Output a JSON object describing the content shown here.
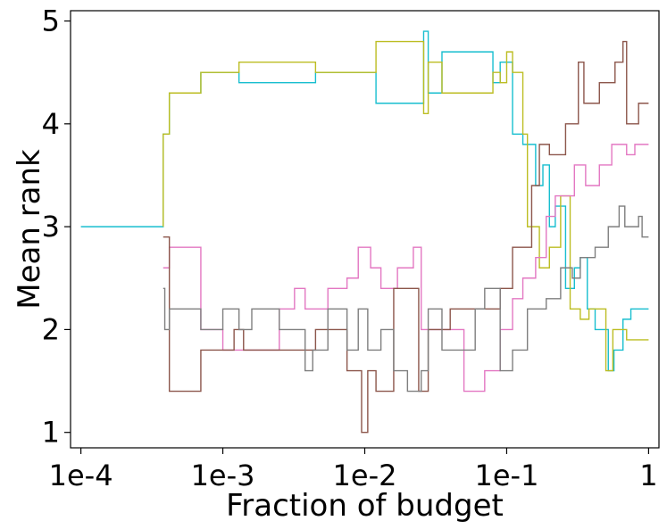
{
  "chart_data": {
    "type": "line",
    "xlabel": "Fraction of budget",
    "ylabel": "Mean rank",
    "xscale": "log",
    "xlim": [
      0.0001,
      1
    ],
    "ylim": [
      0.85,
      5.1
    ],
    "x_ticks": [
      {
        "value": 0.0001,
        "label": "1e-4"
      },
      {
        "value": 0.001,
        "label": "1e-3"
      },
      {
        "value": 0.01,
        "label": "1e-2"
      },
      {
        "value": 0.1,
        "label": "1e-1"
      },
      {
        "value": 1,
        "label": "1"
      }
    ],
    "y_ticks": [
      {
        "value": 1,
        "label": "1"
      },
      {
        "value": 2,
        "label": "2"
      },
      {
        "value": 3,
        "label": "3"
      },
      {
        "value": 4,
        "label": "4"
      },
      {
        "value": 5,
        "label": "5"
      }
    ],
    "grid": false,
    "legend": "none",
    "series": [
      {
        "color": "#17becf",
        "points": [
          [
            0.0001,
            3.0
          ],
          [
            0.00038,
            3.0
          ],
          [
            0.00038,
            3.9
          ],
          [
            0.00042,
            3.9
          ],
          [
            0.00042,
            4.3
          ],
          [
            0.0007,
            4.3
          ],
          [
            0.0007,
            4.5
          ],
          [
            0.0013,
            4.5
          ],
          [
            0.0013,
            4.4
          ],
          [
            0.0045,
            4.4
          ],
          [
            0.0045,
            4.5
          ],
          [
            0.012,
            4.5
          ],
          [
            0.012,
            4.2
          ],
          [
            0.026,
            4.2
          ],
          [
            0.026,
            4.9
          ],
          [
            0.028,
            4.9
          ],
          [
            0.028,
            4.3
          ],
          [
            0.035,
            4.3
          ],
          [
            0.035,
            4.7
          ],
          [
            0.08,
            4.7
          ],
          [
            0.08,
            4.4
          ],
          [
            0.09,
            4.4
          ],
          [
            0.09,
            4.6
          ],
          [
            0.11,
            4.6
          ],
          [
            0.11,
            3.9
          ],
          [
            0.13,
            3.9
          ],
          [
            0.13,
            3.8
          ],
          [
            0.16,
            3.8
          ],
          [
            0.16,
            3.4
          ],
          [
            0.18,
            3.4
          ],
          [
            0.18,
            3.6
          ],
          [
            0.2,
            3.6
          ],
          [
            0.2,
            3.0
          ],
          [
            0.22,
            3.0
          ],
          [
            0.22,
            3.2
          ],
          [
            0.26,
            3.2
          ],
          [
            0.26,
            2.4
          ],
          [
            0.3,
            2.4
          ],
          [
            0.3,
            2.6
          ],
          [
            0.33,
            2.6
          ],
          [
            0.33,
            2.7
          ],
          [
            0.37,
            2.7
          ],
          [
            0.37,
            2.2
          ],
          [
            0.42,
            2.2
          ],
          [
            0.42,
            2.0
          ],
          [
            0.52,
            2.0
          ],
          [
            0.52,
            1.6
          ],
          [
            0.57,
            1.6
          ],
          [
            0.57,
            1.8
          ],
          [
            0.66,
            1.8
          ],
          [
            0.66,
            2.1
          ],
          [
            0.75,
            2.1
          ],
          [
            0.75,
            2.2
          ],
          [
            1.0,
            2.2
          ]
        ]
      },
      {
        "color": "#bcbd22",
        "points": [
          [
            0.00038,
            3.0
          ],
          [
            0.00038,
            3.9
          ],
          [
            0.00042,
            3.9
          ],
          [
            0.00042,
            4.3
          ],
          [
            0.0007,
            4.3
          ],
          [
            0.0007,
            4.5
          ],
          [
            0.0013,
            4.5
          ],
          [
            0.0013,
            4.6
          ],
          [
            0.0045,
            4.6
          ],
          [
            0.0045,
            4.5
          ],
          [
            0.012,
            4.5
          ],
          [
            0.012,
            4.8
          ],
          [
            0.026,
            4.8
          ],
          [
            0.026,
            4.1
          ],
          [
            0.028,
            4.1
          ],
          [
            0.028,
            4.6
          ],
          [
            0.035,
            4.6
          ],
          [
            0.035,
            4.3
          ],
          [
            0.08,
            4.3
          ],
          [
            0.08,
            4.5
          ],
          [
            0.09,
            4.5
          ],
          [
            0.09,
            4.4
          ],
          [
            0.1,
            4.4
          ],
          [
            0.1,
            4.7
          ],
          [
            0.11,
            4.7
          ],
          [
            0.11,
            4.5
          ],
          [
            0.13,
            4.5
          ],
          [
            0.13,
            3.9
          ],
          [
            0.14,
            3.9
          ],
          [
            0.14,
            3.0
          ],
          [
            0.17,
            3.0
          ],
          [
            0.17,
            2.6
          ],
          [
            0.2,
            2.6
          ],
          [
            0.2,
            2.8
          ],
          [
            0.24,
            2.8
          ],
          [
            0.24,
            3.3
          ],
          [
            0.28,
            3.3
          ],
          [
            0.28,
            2.2
          ],
          [
            0.33,
            2.2
          ],
          [
            0.33,
            2.1
          ],
          [
            0.38,
            2.1
          ],
          [
            0.38,
            2.2
          ],
          [
            0.5,
            2.2
          ],
          [
            0.5,
            1.6
          ],
          [
            0.56,
            1.6
          ],
          [
            0.56,
            2.0
          ],
          [
            0.7,
            2.0
          ],
          [
            0.7,
            1.9
          ],
          [
            1.0,
            1.9
          ]
        ]
      },
      {
        "color": "#e377c2",
        "points": [
          [
            0.00038,
            2.6
          ],
          [
            0.00042,
            2.6
          ],
          [
            0.00042,
            2.8
          ],
          [
            0.0007,
            2.8
          ],
          [
            0.0007,
            2.0
          ],
          [
            0.001,
            2.0
          ],
          [
            0.001,
            1.8
          ],
          [
            0.0025,
            1.8
          ],
          [
            0.0025,
            2.2
          ],
          [
            0.0032,
            2.2
          ],
          [
            0.0032,
            2.4
          ],
          [
            0.0038,
            2.4
          ],
          [
            0.0038,
            2.2
          ],
          [
            0.0055,
            2.2
          ],
          [
            0.0055,
            2.4
          ],
          [
            0.0075,
            2.4
          ],
          [
            0.0075,
            2.5
          ],
          [
            0.009,
            2.5
          ],
          [
            0.009,
            2.8
          ],
          [
            0.011,
            2.8
          ],
          [
            0.011,
            2.6
          ],
          [
            0.013,
            2.6
          ],
          [
            0.013,
            2.4
          ],
          [
            0.017,
            2.4
          ],
          [
            0.017,
            2.6
          ],
          [
            0.022,
            2.6
          ],
          [
            0.022,
            2.8
          ],
          [
            0.025,
            2.8
          ],
          [
            0.025,
            2.0
          ],
          [
            0.05,
            2.0
          ],
          [
            0.05,
            1.4
          ],
          [
            0.07,
            1.4
          ],
          [
            0.07,
            1.6
          ],
          [
            0.09,
            1.6
          ],
          [
            0.09,
            2.0
          ],
          [
            0.11,
            2.0
          ],
          [
            0.11,
            2.3
          ],
          [
            0.13,
            2.3
          ],
          [
            0.13,
            2.5
          ],
          [
            0.16,
            2.5
          ],
          [
            0.16,
            2.7
          ],
          [
            0.19,
            2.7
          ],
          [
            0.19,
            3.1
          ],
          [
            0.22,
            3.1
          ],
          [
            0.22,
            3.3
          ],
          [
            0.3,
            3.3
          ],
          [
            0.3,
            3.6
          ],
          [
            0.36,
            3.6
          ],
          [
            0.36,
            3.4
          ],
          [
            0.45,
            3.4
          ],
          [
            0.45,
            3.6
          ],
          [
            0.55,
            3.6
          ],
          [
            0.55,
            3.8
          ],
          [
            0.7,
            3.8
          ],
          [
            0.7,
            3.7
          ],
          [
            0.8,
            3.7
          ],
          [
            0.8,
            3.8
          ],
          [
            1.0,
            3.8
          ]
        ]
      },
      {
        "color": "#8c564b",
        "points": [
          [
            0.00038,
            2.9
          ],
          [
            0.00042,
            2.9
          ],
          [
            0.00042,
            1.4
          ],
          [
            0.0007,
            1.4
          ],
          [
            0.0007,
            1.8
          ],
          [
            0.0012,
            1.8
          ],
          [
            0.0012,
            2.0
          ],
          [
            0.0014,
            2.0
          ],
          [
            0.0014,
            1.8
          ],
          [
            0.0045,
            1.8
          ],
          [
            0.0045,
            2.0
          ],
          [
            0.0075,
            2.0
          ],
          [
            0.0075,
            1.6
          ],
          [
            0.0095,
            1.6
          ],
          [
            0.0095,
            1.0
          ],
          [
            0.0105,
            1.0
          ],
          [
            0.0105,
            1.6
          ],
          [
            0.012,
            1.6
          ],
          [
            0.012,
            1.4
          ],
          [
            0.016,
            1.4
          ],
          [
            0.016,
            2.4
          ],
          [
            0.024,
            2.4
          ],
          [
            0.024,
            1.4
          ],
          [
            0.028,
            1.4
          ],
          [
            0.028,
            2.0
          ],
          [
            0.04,
            2.0
          ],
          [
            0.04,
            2.2
          ],
          [
            0.09,
            2.2
          ],
          [
            0.09,
            2.4
          ],
          [
            0.11,
            2.4
          ],
          [
            0.11,
            2.8
          ],
          [
            0.15,
            2.8
          ],
          [
            0.15,
            3.4
          ],
          [
            0.17,
            3.4
          ],
          [
            0.17,
            3.8
          ],
          [
            0.2,
            3.8
          ],
          [
            0.2,
            3.7
          ],
          [
            0.26,
            3.7
          ],
          [
            0.26,
            4.0
          ],
          [
            0.32,
            4.0
          ],
          [
            0.32,
            4.6
          ],
          [
            0.35,
            4.6
          ],
          [
            0.35,
            4.2
          ],
          [
            0.45,
            4.2
          ],
          [
            0.45,
            4.4
          ],
          [
            0.58,
            4.4
          ],
          [
            0.58,
            4.6
          ],
          [
            0.66,
            4.6
          ],
          [
            0.66,
            4.8
          ],
          [
            0.7,
            4.8
          ],
          [
            0.7,
            4.0
          ],
          [
            0.85,
            4.0
          ],
          [
            0.85,
            4.2
          ],
          [
            1.0,
            4.2
          ]
        ]
      },
      {
        "color": "#7f7f7f",
        "points": [
          [
            0.00038,
            2.4
          ],
          [
            0.00039,
            2.4
          ],
          [
            0.00039,
            2.0
          ],
          [
            0.00042,
            2.0
          ],
          [
            0.00042,
            2.2
          ],
          [
            0.0007,
            2.2
          ],
          [
            0.0007,
            2.0
          ],
          [
            0.001,
            2.0
          ],
          [
            0.001,
            2.2
          ],
          [
            0.0013,
            2.2
          ],
          [
            0.0013,
            2.0
          ],
          [
            0.0016,
            2.0
          ],
          [
            0.0016,
            2.2
          ],
          [
            0.0025,
            2.2
          ],
          [
            0.0025,
            2.0
          ],
          [
            0.0038,
            2.0
          ],
          [
            0.0038,
            1.6
          ],
          [
            0.0043,
            1.6
          ],
          [
            0.0043,
            1.8
          ],
          [
            0.0055,
            1.8
          ],
          [
            0.0055,
            2.2
          ],
          [
            0.0075,
            2.2
          ],
          [
            0.0075,
            1.8
          ],
          [
            0.009,
            1.8
          ],
          [
            0.009,
            2.2
          ],
          [
            0.0105,
            2.2
          ],
          [
            0.0105,
            1.8
          ],
          [
            0.013,
            1.8
          ],
          [
            0.013,
            2.0
          ],
          [
            0.016,
            2.0
          ],
          [
            0.016,
            1.6
          ],
          [
            0.02,
            1.6
          ],
          [
            0.02,
            1.4
          ],
          [
            0.025,
            1.4
          ],
          [
            0.025,
            1.6
          ],
          [
            0.028,
            1.6
          ],
          [
            0.028,
            2.2
          ],
          [
            0.035,
            2.2
          ],
          [
            0.035,
            1.8
          ],
          [
            0.06,
            1.8
          ],
          [
            0.06,
            2.2
          ],
          [
            0.07,
            2.2
          ],
          [
            0.07,
            2.4
          ],
          [
            0.09,
            2.4
          ],
          [
            0.09,
            1.6
          ],
          [
            0.11,
            1.6
          ],
          [
            0.11,
            1.8
          ],
          [
            0.14,
            1.8
          ],
          [
            0.14,
            2.2
          ],
          [
            0.19,
            2.2
          ],
          [
            0.19,
            2.3
          ],
          [
            0.24,
            2.3
          ],
          [
            0.24,
            2.6
          ],
          [
            0.29,
            2.6
          ],
          [
            0.29,
            2.5
          ],
          [
            0.33,
            2.5
          ],
          [
            0.33,
            2.7
          ],
          [
            0.42,
            2.7
          ],
          [
            0.42,
            2.8
          ],
          [
            0.52,
            2.8
          ],
          [
            0.52,
            3.0
          ],
          [
            0.62,
            3.0
          ],
          [
            0.62,
            3.2
          ],
          [
            0.68,
            3.2
          ],
          [
            0.68,
            3.0
          ],
          [
            0.85,
            3.0
          ],
          [
            0.85,
            3.1
          ],
          [
            0.9,
            3.1
          ],
          [
            0.9,
            2.9
          ],
          [
            1.0,
            2.9
          ]
        ]
      }
    ]
  }
}
